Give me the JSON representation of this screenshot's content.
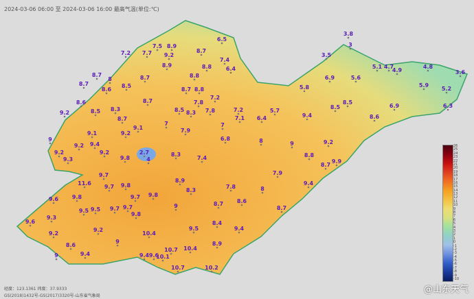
{
  "title": "2024-03-06 06:00 至 2024-03-06 16:00 最高气温(单位:℃)",
  "footer": {
    "coords": "经度：123.1361  纬度：37.9333",
    "license": "GS(2018)1432号-GS(2017)3320号-山东省气象局"
  },
  "watermark": "@山东天气",
  "legend": {
    "max": 26,
    "min": -10,
    "unit": "℃",
    "colors": [
      "#4a0010",
      "#8a0010",
      "#c81010",
      "#e04020",
      "#f07020",
      "#f5a020",
      "#f5c040",
      "#eedd70",
      "#d8e080",
      "#a0e0a0",
      "#90d0c8",
      "#a0c0e8",
      "#7090e0",
      "#3060c8",
      "#1a3a9a",
      "#0a1a60"
    ]
  },
  "stations": [
    6.5,
    7.2,
    7.7,
    7.5,
    8.9,
    9.2,
    8.9,
    8.7,
    7.4,
    6.4,
    8.8,
    8.7,
    8,
    8.7,
    8.6,
    8.5,
    8.7,
    8.8,
    8.7,
    8.8,
    8.6,
    8.7,
    7.8,
    7.2,
    9.2,
    8.5,
    8.3,
    8.5,
    8.3,
    8.7,
    9.1,
    7,
    7.8,
    7.2,
    7.1,
    9,
    9.1,
    9.2,
    7.9,
    7,
    6.8,
    9.2,
    9.4,
    3.8,
    3,
    3.5,
    5.1,
    4.7,
    4.9,
    4.8,
    3.6,
    6.9,
    5.6,
    5.8,
    5.9,
    5.2,
    8.5,
    8.5,
    6.9,
    6.3,
    5.7,
    6.4,
    9.4,
    8.6,
    8,
    9,
    9.2,
    9.2,
    9.3,
    9.2,
    9.8,
    2.7,
    4,
    8.3,
    7.4,
    9.7,
    11.6,
    9.7,
    9.8,
    8.9,
    8.3,
    7.8,
    9.6,
    9.8,
    9.7,
    9.8,
    9.7,
    9.5,
    9.5,
    9.7,
    9.8,
    9,
    8.7,
    9.3,
    9.6,
    9.2,
    9.2,
    10.4,
    9.5,
    8.4,
    9,
    8.6,
    8.9,
    9,
    9.4,
    9.4,
    9.6,
    10.1,
    10.7,
    10.4,
    10.7,
    10.2,
    8.8,
    8.7,
    9.9,
    7.9,
    9.4,
    8,
    8.6,
    8.7,
    9.4
  ]
}
